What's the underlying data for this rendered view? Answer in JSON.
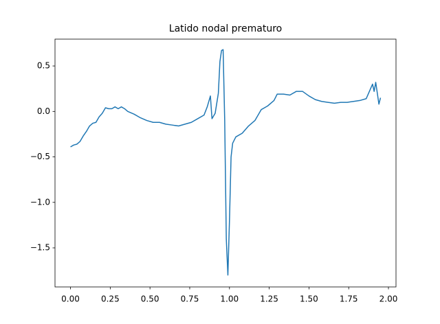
{
  "chart_data": {
    "type": "line",
    "title": "Latido nodal prematuro",
    "x": [
      0,
      0.02,
      0.04,
      0.06,
      0.08,
      0.1,
      0.12,
      0.14,
      0.16,
      0.18,
      0.2,
      0.22,
      0.24,
      0.26,
      0.28,
      0.3,
      0.32,
      0.34,
      0.36,
      0.4,
      0.44,
      0.48,
      0.52,
      0.56,
      0.6,
      0.64,
      0.68,
      0.72,
      0.76,
      0.8,
      0.84,
      0.86,
      0.88,
      0.89,
      0.91,
      0.93,
      0.94,
      0.95,
      0.96,
      0.97,
      0.98,
      0.99,
      1.0,
      1.01,
      1.02,
      1.04,
      1.08,
      1.12,
      1.16,
      1.2,
      1.24,
      1.28,
      1.3,
      1.34,
      1.38,
      1.42,
      1.46,
      1.5,
      1.54,
      1.58,
      1.62,
      1.66,
      1.7,
      1.74,
      1.78,
      1.82,
      1.86,
      1.88,
      1.9,
      1.91,
      1.92,
      1.93,
      1.94,
      1.95
    ],
    "series": [
      {
        "color": "#1f77b4",
        "values": [
          -0.39,
          -0.37,
          -0.36,
          -0.33,
          -0.27,
          -0.22,
          -0.16,
          -0.13,
          -0.12,
          -0.06,
          -0.02,
          0.04,
          0.03,
          0.03,
          0.05,
          0.03,
          0.05,
          0.03,
          0.0,
          -0.03,
          -0.07,
          -0.1,
          -0.12,
          -0.12,
          -0.14,
          -0.15,
          -0.16,
          -0.14,
          -0.12,
          -0.08,
          -0.04,
          0.05,
          0.17,
          -0.08,
          -0.02,
          0.2,
          0.55,
          0.67,
          0.68,
          -0.1,
          -1.4,
          -1.8,
          -1.2,
          -0.5,
          -0.35,
          -0.28,
          -0.24,
          -0.16,
          -0.1,
          0.02,
          0.06,
          0.12,
          0.19,
          0.19,
          0.18,
          0.22,
          0.22,
          0.17,
          0.13,
          0.11,
          0.1,
          0.09,
          0.1,
          0.1,
          0.11,
          0.12,
          0.14,
          0.22,
          0.3,
          0.22,
          0.32,
          0.2,
          0.08,
          0.15
        ]
      }
    ],
    "xlim": [
      -0.0975,
      2.0475
    ],
    "xticks": [
      {
        "value": 0,
        "label": "0.00"
      },
      {
        "value": 0.25,
        "label": "0.25"
      },
      {
        "value": 0.5,
        "label": "0.50"
      },
      {
        "value": 0.75,
        "label": "0.75"
      },
      {
        "value": 1,
        "label": "1.00"
      },
      {
        "value": 1.25,
        "label": "1.25"
      },
      {
        "value": 1.5,
        "label": "1.50"
      },
      {
        "value": 1.75,
        "label": "1.75"
      },
      {
        "value": 2,
        "label": "2.00"
      }
    ],
    "ylim": [
      -1.93,
      0.795
    ],
    "yticks": [
      {
        "value": -1.5,
        "label": "−1.5"
      },
      {
        "value": -1,
        "label": "−1.0"
      },
      {
        "value": -0.5,
        "label": "−0.5"
      },
      {
        "value": 0,
        "label": "0.0"
      },
      {
        "value": 0.5,
        "label": "0.5"
      }
    ],
    "grid": false
  }
}
